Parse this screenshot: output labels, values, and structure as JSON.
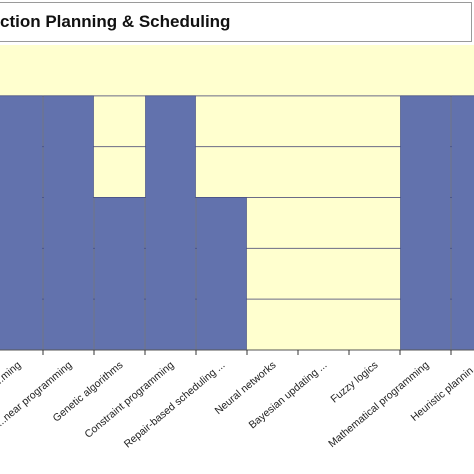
{
  "chart_data": {
    "type": "bar",
    "title": "ction Planning & Scheduling",
    "categories": [
      "...ming",
      "...near programming",
      "Genetic algorithms",
      "Constraint programming",
      "Repair-based scheduling ...",
      "Neural networks",
      "Bayesian updating ...",
      "Fuzzy logics",
      "Mathematical programming",
      "Heuristic plannin..."
    ],
    "values": [
      5,
      5,
      3,
      5,
      3,
      0,
      0,
      0,
      5,
      5
    ],
    "ylim": [
      0,
      6
    ],
    "grid": true,
    "colors": {
      "bar": "#6272ad",
      "bar_edge": "#3b4680",
      "plot_bg": "#ffffcf",
      "grid": "#6b6b86",
      "frame": "#9a9a9a"
    }
  }
}
